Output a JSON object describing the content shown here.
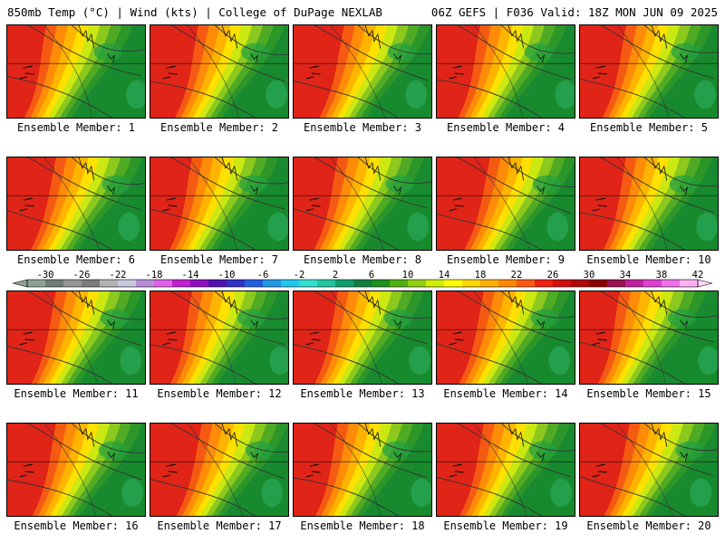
{
  "header": {
    "left": "850mb Temp (°C) | Wind (kts) | College of DuPage NEXLAB",
    "right": "06Z GEFS | F036 Valid: 18Z MON JUN 09 2025"
  },
  "panels": [
    {
      "label": "Ensemble Member: 1"
    },
    {
      "label": "Ensemble Member: 2"
    },
    {
      "label": "Ensemble Member: 3"
    },
    {
      "label": "Ensemble Member: 4"
    },
    {
      "label": "Ensemble Member: 5"
    },
    {
      "label": "Ensemble Member: 6"
    },
    {
      "label": "Ensemble Member: 7"
    },
    {
      "label": "Ensemble Member: 8"
    },
    {
      "label": "Ensemble Member: 9"
    },
    {
      "label": "Ensemble Member: 10"
    },
    {
      "label": "Ensemble Member: 11"
    },
    {
      "label": "Ensemble Member: 12"
    },
    {
      "label": "Ensemble Member: 13"
    },
    {
      "label": "Ensemble Member: 14"
    },
    {
      "label": "Ensemble Member: 15"
    },
    {
      "label": "Ensemble Member: 16"
    },
    {
      "label": "Ensemble Member: 17"
    },
    {
      "label": "Ensemble Member: 18"
    },
    {
      "label": "Ensemble Member: 19"
    },
    {
      "label": "Ensemble Member: 20"
    }
  ],
  "colorbar": {
    "ticks": [
      "-30",
      "-26",
      "-22",
      "-18",
      "-14",
      "-10",
      "-6",
      "-2",
      "2",
      "6",
      "10",
      "14",
      "18",
      "22",
      "26",
      "30",
      "34",
      "38",
      "42"
    ],
    "colors": [
      "#8ea294",
      "#6e7e74",
      "#969696",
      "#7c7c7c",
      "#b3b3b3",
      "#c8c8e0",
      "#b88ed8",
      "#e060e8",
      "#c020d0",
      "#9010c0",
      "#5010b0",
      "#3030c8",
      "#2060e0",
      "#2098e8",
      "#20c8f0",
      "#30e0d0",
      "#20c8a0",
      "#10a070",
      "#108040",
      "#209020",
      "#50b010",
      "#90d010",
      "#d0f000",
      "#ffff00",
      "#ffd800",
      "#ffb000",
      "#ff8800",
      "#ff5a10",
      "#f02010",
      "#d01010",
      "#b00808",
      "#8c0000",
      "#9a1050",
      "#c020a0",
      "#e040d0",
      "#f070e8",
      "#ffb0f4"
    ]
  }
}
